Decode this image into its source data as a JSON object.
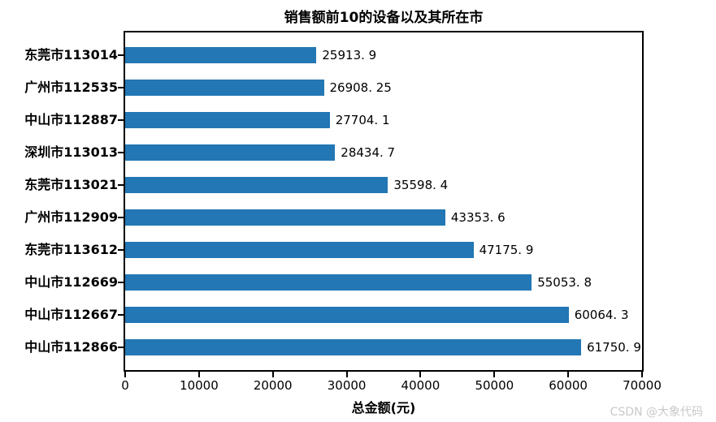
{
  "figure": {
    "watermark": "CSDN @大象代码"
  },
  "chart_data": {
    "type": "bar",
    "orientation": "horizontal",
    "title": "销售额前10的设备以及其所在市",
    "xlabel": "总金额(元)",
    "ylabel": "",
    "xlim": [
      0,
      70000
    ],
    "xticks": [
      0,
      10000,
      20000,
      30000,
      40000,
      50000,
      60000,
      70000
    ],
    "xtick_labels": [
      "0",
      "10000",
      "20000",
      "30000",
      "40000",
      "50000",
      "60000",
      "70000"
    ],
    "grid": false,
    "legend": null,
    "bar_color": "#2277b4",
    "categories": [
      "东莞市113014",
      "广州市112535",
      "中山市112887",
      "深圳市113013",
      "东莞市113021",
      "广州市112909",
      "东莞市113612",
      "中山市112669",
      "中山市112667",
      "中山市112866"
    ],
    "values": [
      25913.9,
      26908.25,
      27704.1,
      28434.7,
      35598.4,
      43353.6,
      47175.9,
      55053.8,
      60064.3,
      61750.9
    ],
    "value_labels": [
      "25913. 9",
      "26908. 25",
      "27704. 1",
      "28434. 7",
      "35598. 4",
      "43353. 6",
      "47175. 9",
      "55053. 8",
      "60064. 3",
      "61750. 9"
    ]
  }
}
